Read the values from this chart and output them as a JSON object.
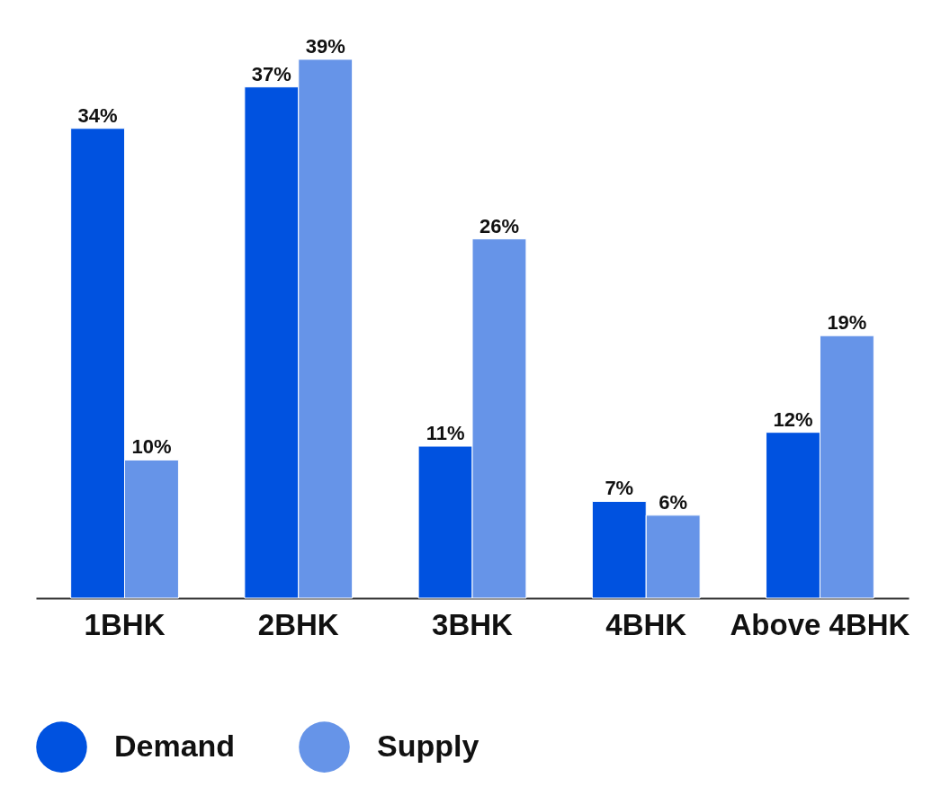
{
  "chart_data": {
    "type": "bar",
    "categories": [
      "1BHK",
      "2BHK",
      "3BHK",
      "4BHK",
      "Above 4BHK"
    ],
    "series": [
      {
        "name": "Demand",
        "color": "#0052e0",
        "values": [
          34,
          37,
          11,
          7,
          12
        ],
        "value_labels": [
          "34%",
          "37%",
          "11%",
          "7%",
          "12%"
        ]
      },
      {
        "name": "Supply",
        "color": "#6694e8",
        "values": [
          10,
          39,
          26,
          6,
          19
        ],
        "value_labels": [
          "10%",
          "39%",
          "26%",
          "6%",
          "19%"
        ]
      }
    ],
    "legend": "bottom",
    "grid": false
  }
}
